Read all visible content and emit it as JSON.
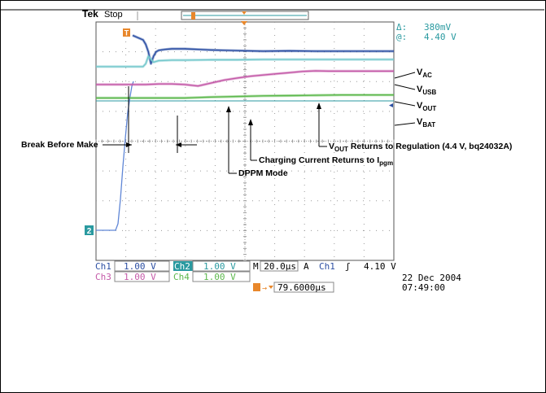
{
  "header": {
    "brand": "Tek",
    "state": "Stop",
    "trigger_marker": "T"
  },
  "cursor_readout": {
    "delta_label": "Δ:",
    "delta_value": "380mV",
    "at_label": "@:",
    "at_value": "4.40 V"
  },
  "signal_labels": [
    {
      "main": "V",
      "sub": "AC"
    },
    {
      "main": "V",
      "sub": "USB"
    },
    {
      "main": "V",
      "sub": "OUT"
    },
    {
      "main": "V",
      "sub": "BAT"
    }
  ],
  "annotations": {
    "break_before_make": "Break Before Make",
    "vout_returns_pre": "V",
    "vout_returns_sub": "OUT",
    "vout_returns_post": " Returns to Regulation (4.4 V, bq24032A)",
    "charging_current": "Charging Current Returns to I",
    "charging_current_sub": "pgm",
    "dppm_mode": "DPPM Mode"
  },
  "channel_marker": "2",
  "status": {
    "ch1_label": "Ch1",
    "ch1_scale": "1.00 V",
    "ch2_label": "Ch2",
    "ch2_scale": "1.00 V",
    "ch3_label": "Ch3",
    "ch3_scale": "1.00 V",
    "ch4_label": "Ch4",
    "ch4_scale": "1.00 V",
    "timebase": "M 20.0µs",
    "trigger_mode": "A",
    "trigger_source": "Ch1",
    "trigger_slope": "ʃ",
    "trigger_level": "4.10 V",
    "trigger_offset": "79.6000µs",
    "date": "22 Dec  2004",
    "time": "07:49:00"
  },
  "colors": {
    "ch_vac": "#2c4fa3",
    "ch_vusb": "#74c8cc",
    "ch_vout": "#c45aa8",
    "ch_vbat": "#5cb84c",
    "ch2_step": "#5f86d6",
    "accent_orange": "#e8872b",
    "teal_ui": "#2a9aa0",
    "grid": "#9a9a9a"
  },
  "chart_data": {
    "type": "line",
    "x_unit": "µs",
    "x_range": [
      0,
      200
    ],
    "y_unit": "div",
    "y_range": [
      -4,
      4
    ],
    "grid": true,
    "series": [
      {
        "name": "VAC",
        "x": [
          0,
          8,
          10,
          12,
          14,
          16,
          18,
          20,
          25,
          30,
          40,
          50,
          60,
          70,
          80,
          100,
          120,
          140,
          160,
          180,
          200
        ],
        "y": [
          3.55,
          3.4,
          3.25,
          3.0,
          2.6,
          2.85,
          3.0,
          3.05,
          3.08,
          3.1,
          3.1,
          3.08,
          3.06,
          3.05,
          3.04,
          3.02,
          3.03,
          3.02,
          3.02,
          3.02,
          3.02
        ]
      },
      {
        "name": "VUSB",
        "x": [
          0,
          8,
          10,
          12,
          14,
          16,
          20,
          30,
          40,
          60,
          80,
          100,
          120,
          140,
          160,
          180,
          200
        ],
        "y": [
          2.5,
          2.5,
          2.6,
          2.85,
          2.75,
          2.65,
          2.7,
          2.72,
          2.72,
          2.73,
          2.73,
          2.74,
          2.74,
          2.74,
          2.74,
          2.74,
          2.74
        ]
      },
      {
        "name": "VOUT",
        "x": [
          0,
          10,
          20,
          30,
          40,
          50,
          60,
          70,
          80,
          90,
          100,
          110,
          120,
          130,
          140,
          150,
          160,
          180,
          200
        ],
        "y": [
          1.9,
          1.9,
          1.92,
          1.92,
          1.9,
          1.85,
          1.95,
          2.05,
          2.12,
          2.18,
          2.22,
          2.26,
          2.3,
          2.34,
          2.36,
          2.35,
          2.35,
          2.35,
          2.35
        ]
      },
      {
        "name": "VBAT",
        "x": [
          0,
          20,
          40,
          60,
          80,
          100,
          120,
          140,
          160,
          180,
          200
        ],
        "y": [
          1.45,
          1.45,
          1.45,
          1.48,
          1.5,
          1.52,
          1.53,
          1.54,
          1.55,
          1.55,
          1.55
        ]
      }
    ]
  }
}
